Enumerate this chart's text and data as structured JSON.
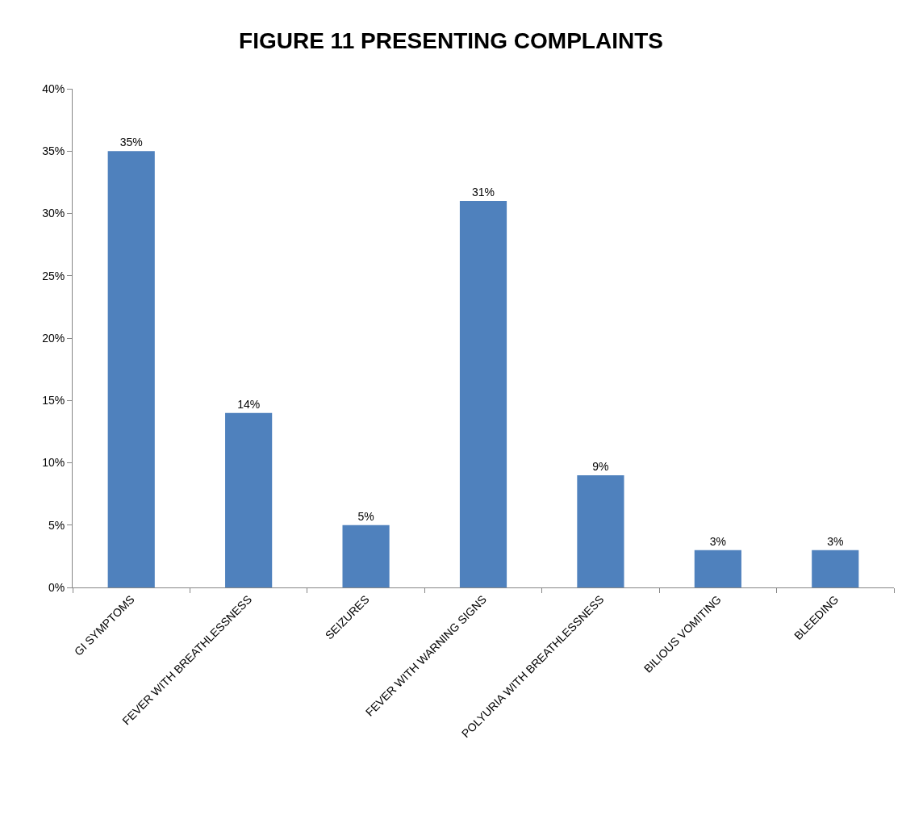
{
  "chart_data": {
    "type": "bar",
    "title": "FIGURE 11 PRESENTING COMPLAINTS",
    "categories": [
      "GI SYMPTOMS",
      "FEVER WITH BREATHLESSNESS",
      "SEIZURES",
      "FEVER WITH WARNING SIGNS",
      "POLYURIA WITH BREATHLESSNESS",
      "BILIOUS VOMITING",
      "BLEEDING"
    ],
    "values": [
      35,
      14,
      5,
      31,
      9,
      3,
      3
    ],
    "value_labels": [
      "35%",
      "14%",
      "5%",
      "31%",
      "9%",
      "3%",
      "3%"
    ],
    "color": "#4f81bd",
    "ylim": [
      0,
      40
    ],
    "yticks": [
      {
        "value": 0,
        "label": "0%"
      },
      {
        "value": 5,
        "label": "5%"
      },
      {
        "value": 10,
        "label": "10%"
      },
      {
        "value": 15,
        "label": "15%"
      },
      {
        "value": 20,
        "label": "20%"
      },
      {
        "value": 25,
        "label": "25%"
      },
      {
        "value": 30,
        "label": "30%"
      },
      {
        "value": 35,
        "label": "35%"
      },
      {
        "value": 40,
        "label": "40%"
      }
    ],
    "legend": false
  }
}
